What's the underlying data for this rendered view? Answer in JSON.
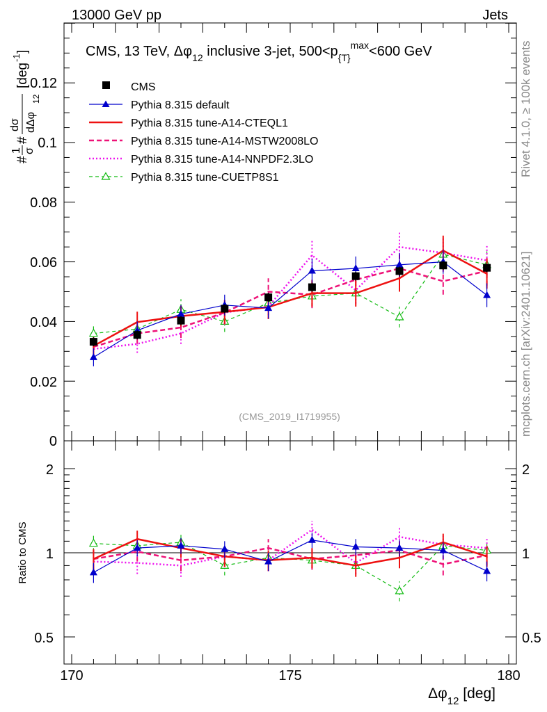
{
  "header": {
    "left": "13000 GeV pp",
    "right": "Jets"
  },
  "side_labels": {
    "rivet": "Rivet 4.1.0, ≥ 100k events",
    "mcplots": "mcplots.cern.ch [arXiv:2401.10621]"
  },
  "colors": {
    "cms": "#000000",
    "default": "#0000cc",
    "cteql1": "#ee1111",
    "mstw": "#ee1177",
    "nnpdf": "#ee11ee",
    "cuetp": "#11bb11"
  },
  "chart_data": [
    {
      "type": "line",
      "title": "CMS, 13 TeV, Δφ12 inclusive 3-jet, 500<pT max<600 GeV",
      "title_parts": {
        "a": "CMS, 13 TeV, ",
        "dphi": "Δφ",
        "sub12": "12",
        "b": " inclusive 3-jet, 500<p",
        "subT": "{T}",
        "supmax": "max",
        "c": "<600 GeV"
      },
      "ylabel_parts": {
        "hash1": "#",
        "one": "1",
        "sigma": "σ",
        "hash2": "#",
        "dsigma": "dσ",
        "ddphi": "dΔφ",
        "sub12": "12",
        "unit": "[deg",
        "unit_sup": "-1",
        "unit_close": "]"
      },
      "watermark": "(CMS_2019_I1719955)",
      "xlim": [
        170,
        180
      ],
      "ylim": [
        0,
        0.14
      ],
      "yticks": [
        0,
        0.02,
        0.04,
        0.06,
        0.08,
        0.1,
        0.12
      ],
      "ytick_labels": [
        "0",
        "0.02",
        "0.04",
        "0.06",
        "0.08",
        "0.1",
        "0.12"
      ],
      "legend": [
        {
          "key": "cms",
          "label": "CMS"
        },
        {
          "key": "default",
          "label": "Pythia 8.315 default"
        },
        {
          "key": "cteql1",
          "label": "Pythia 8.315 tune-A14-CTEQL1"
        },
        {
          "key": "mstw",
          "label": "Pythia 8.315 tune-A14-MSTW2008LO"
        },
        {
          "key": "nnpdf",
          "label": "Pythia 8.315 tune-A14-NNPDF2.3LO"
        },
        {
          "key": "cuetp",
          "label": "Pythia 8.315 tune-CUETP8S1"
        }
      ],
      "x": [
        170.5,
        171.5,
        172.5,
        173.5,
        174.5,
        175.5,
        176.5,
        177.5,
        178.5,
        179.5
      ],
      "series": [
        {
          "key": "cms",
          "name": "CMS",
          "values": [
            0.0332,
            0.0355,
            0.0403,
            0.0443,
            0.0481,
            0.0515,
            0.0552,
            0.0569,
            0.0588,
            0.058
          ],
          "errors": [
            0.0015,
            0.0015,
            0.0015,
            0.0015,
            0.0015,
            0.0015,
            0.0015,
            0.0015,
            0.0015,
            0.0015
          ]
        },
        {
          "key": "default",
          "name": "Pythia 8.315 default",
          "values": [
            0.028,
            0.037,
            0.0425,
            0.0455,
            0.0445,
            0.057,
            0.0578,
            0.059,
            0.06,
            0.0488
          ],
          "errors": [
            0.003,
            0.003,
            0.003,
            0.0035,
            0.0035,
            0.004,
            0.004,
            0.004,
            0.004,
            0.004
          ]
        },
        {
          "key": "cteql1",
          "name": "Pythia 8.315 tune-A14-CTEQL1",
          "values": [
            0.0318,
            0.0398,
            0.0418,
            0.0432,
            0.0448,
            0.0495,
            0.0495,
            0.0545,
            0.0638,
            0.056
          ],
          "errors": [
            0.003,
            0.0035,
            0.0035,
            0.004,
            0.004,
            0.0045,
            0.0045,
            0.0045,
            0.005,
            0.005
          ]
        },
        {
          "key": "mstw",
          "name": "Pythia 8.315 tune-A14-MSTW2008LO",
          "values": [
            0.0315,
            0.036,
            0.038,
            0.043,
            0.05,
            0.049,
            0.054,
            0.0578,
            0.0535,
            0.057
          ],
          "errors": [
            0.003,
            0.0035,
            0.0035,
            0.004,
            0.0045,
            0.0045,
            0.0045,
            0.0045,
            0.0045,
            0.005
          ]
        },
        {
          "key": "nnpdf",
          "name": "Pythia 8.315 tune-A14-NNPDF2.3LO",
          "values": [
            0.0308,
            0.0325,
            0.036,
            0.043,
            0.045,
            0.0622,
            0.0505,
            0.065,
            0.063,
            0.0605
          ],
          "errors": [
            0.003,
            0.003,
            0.0035,
            0.004,
            0.004,
            0.005,
            0.0045,
            0.005,
            0.005,
            0.005
          ]
        },
        {
          "key": "cuetp",
          "name": "Pythia 8.315 tune-CUETP8S1",
          "values": [
            0.036,
            0.0375,
            0.044,
            0.04,
            0.0462,
            0.0485,
            0.0495,
            0.0415,
            0.0625,
            0.059
          ],
          "errors": [
            0.003,
            0.0035,
            0.0035,
            0.0035,
            0.004,
            0.004,
            0.004,
            0.0035,
            0.005,
            0.005
          ]
        }
      ]
    },
    {
      "type": "line",
      "ylabel": "Ratio to CMS",
      "xlabel_parts": {
        "dphi": "Δφ",
        "sub12": "12",
        "unit": " [deg]"
      },
      "xlim": [
        170,
        180
      ],
      "ylim": [
        0.4,
        2.3
      ],
      "yscale": "log",
      "xticks": [
        170,
        175,
        180
      ],
      "xtick_labels": [
        "170",
        "175",
        "180"
      ],
      "yticks": [
        0.5,
        1,
        2
      ],
      "ytick_labels": [
        "0.5",
        "1",
        "2"
      ],
      "reference": 1,
      "x": [
        170.5,
        171.5,
        172.5,
        173.5,
        174.5,
        175.5,
        176.5,
        177.5,
        178.5,
        179.5
      ],
      "series": [
        {
          "key": "default",
          "values": [
            0.85,
            1.04,
            1.06,
            1.03,
            0.93,
            1.11,
            1.05,
            1.04,
            1.02,
            0.86
          ],
          "errors": [
            0.07,
            0.07,
            0.07,
            0.07,
            0.07,
            0.07,
            0.07,
            0.07,
            0.07,
            0.07
          ]
        },
        {
          "key": "cteql1",
          "values": [
            0.95,
            1.12,
            1.04,
            0.97,
            0.94,
            0.96,
            0.9,
            0.96,
            1.09,
            0.97
          ],
          "errors": [
            0.08,
            0.08,
            0.08,
            0.08,
            0.08,
            0.08,
            0.08,
            0.08,
            0.08,
            0.08
          ]
        },
        {
          "key": "mstw",
          "values": [
            0.95,
            1.01,
            0.94,
            0.97,
            1.04,
            0.95,
            0.98,
            1.02,
            0.91,
            0.98
          ],
          "errors": [
            0.08,
            0.08,
            0.08,
            0.08,
            0.08,
            0.08,
            0.08,
            0.08,
            0.08,
            0.08
          ]
        },
        {
          "key": "nnpdf",
          "values": [
            0.93,
            0.92,
            0.9,
            0.97,
            0.94,
            1.21,
            0.92,
            1.14,
            1.07,
            1.04
          ],
          "errors": [
            0.08,
            0.08,
            0.08,
            0.08,
            0.08,
            0.09,
            0.08,
            0.09,
            0.08,
            0.08
          ]
        },
        {
          "key": "cuetp",
          "values": [
            1.08,
            1.06,
            1.09,
            0.9,
            0.96,
            0.94,
            0.9,
            0.73,
            1.06,
            1.02
          ],
          "errors": [
            0.07,
            0.07,
            0.07,
            0.07,
            0.07,
            0.07,
            0.07,
            0.06,
            0.07,
            0.07
          ]
        }
      ]
    }
  ]
}
